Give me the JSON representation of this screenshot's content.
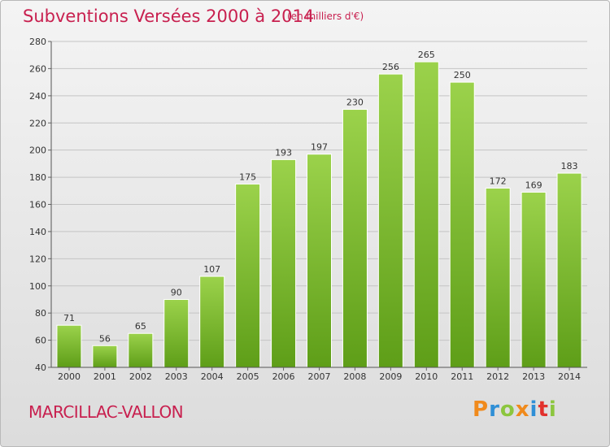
{
  "chart_data": {
    "type": "bar",
    "title": "Subventions Versées 2000 à 2014",
    "subtitle": "(en milliers d'€)",
    "categories": [
      "2000",
      "2001",
      "2002",
      "2003",
      "2004",
      "2005",
      "2006",
      "2007",
      "2008",
      "2009",
      "2010",
      "2011",
      "2012",
      "2013",
      "2014"
    ],
    "values": [
      71,
      56,
      65,
      90,
      107,
      175,
      193,
      197,
      230,
      256,
      265,
      250,
      172,
      169,
      183
    ],
    "ylim": [
      40,
      280
    ],
    "yticks": [
      40,
      60,
      80,
      100,
      120,
      140,
      160,
      180,
      200,
      220,
      240,
      260,
      280
    ],
    "grid": true,
    "bar_color_top": "#9bd24b",
    "bar_color_bottom": "#5e9e18"
  },
  "commune": "MARCILLAC-VALLON",
  "brand": [
    "P",
    "r",
    "o",
    "x",
    "i",
    "t",
    "i"
  ],
  "colors": {
    "accent": "#c8204f"
  }
}
